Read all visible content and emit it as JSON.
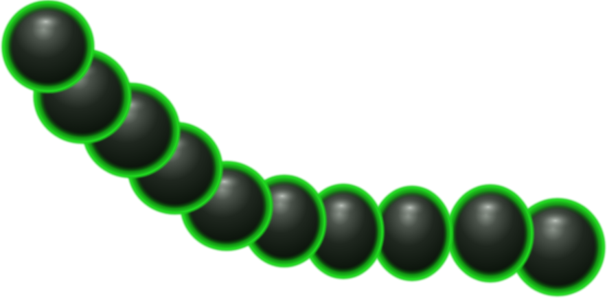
{
  "scene": {
    "subject": "chain-of-spheres",
    "sphere_count": 10,
    "colors": {
      "background": "#ffffff",
      "rim_glow": "#1fd11f",
      "rim_dark": "#0a8a0a",
      "body_dark": "#0c1a0c",
      "body_mid": "#2a332a",
      "highlight": "#9aa39a"
    }
  }
}
